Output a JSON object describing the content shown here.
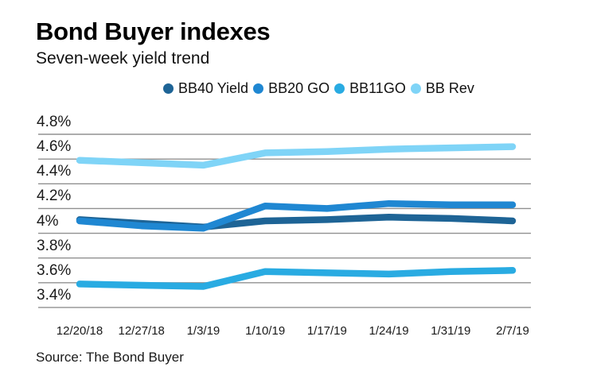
{
  "header": {
    "title": "Bond Buyer indexes",
    "subtitle": "Seven-week yield trend"
  },
  "source": "Source: The Bond Buyer",
  "colors": {
    "background": "#ffffff",
    "gridline": "#909090",
    "text": "#1a1a1a",
    "bb40_yield": "#1e6496",
    "bb20_go": "#1f87d2",
    "bb11go": "#29abe2",
    "bb_rev": "#7fd4f7"
  },
  "chart_data": {
    "type": "line",
    "title": "Bond Buyer indexes",
    "subtitle": "Seven-week yield trend",
    "x": [
      "12/20/18",
      "12/27/18",
      "1/3/19",
      "1/10/19",
      "1/17/19",
      "1/24/19",
      "1/31/19",
      "2/7/19"
    ],
    "y_ticks": [
      "4.8%",
      "4.6%",
      "4.4%",
      "4.2%",
      "4%",
      "3.8%",
      "3.6%",
      "3.4%"
    ],
    "ylim": [
      3.4,
      4.8
    ],
    "grid": "horizontal",
    "legend_position": "top",
    "series": [
      {
        "name": "BB40 Yield",
        "color": "#1e6496",
        "values": [
          4.11,
          4.08,
          4.05,
          4.1,
          4.11,
          4.13,
          4.12,
          4.1
        ]
      },
      {
        "name": "BB20 GO",
        "color": "#1f87d2",
        "values": [
          4.1,
          4.06,
          4.04,
          4.22,
          4.2,
          4.24,
          4.23,
          4.23
        ]
      },
      {
        "name": "BB11GO",
        "color": "#29abe2",
        "values": [
          3.59,
          3.58,
          3.57,
          3.69,
          3.68,
          3.67,
          3.69,
          3.7
        ]
      },
      {
        "name": "BB Rev",
        "color": "#7fd4f7",
        "values": [
          4.59,
          4.57,
          4.55,
          4.65,
          4.66,
          4.68,
          4.69,
          4.7
        ]
      }
    ]
  }
}
